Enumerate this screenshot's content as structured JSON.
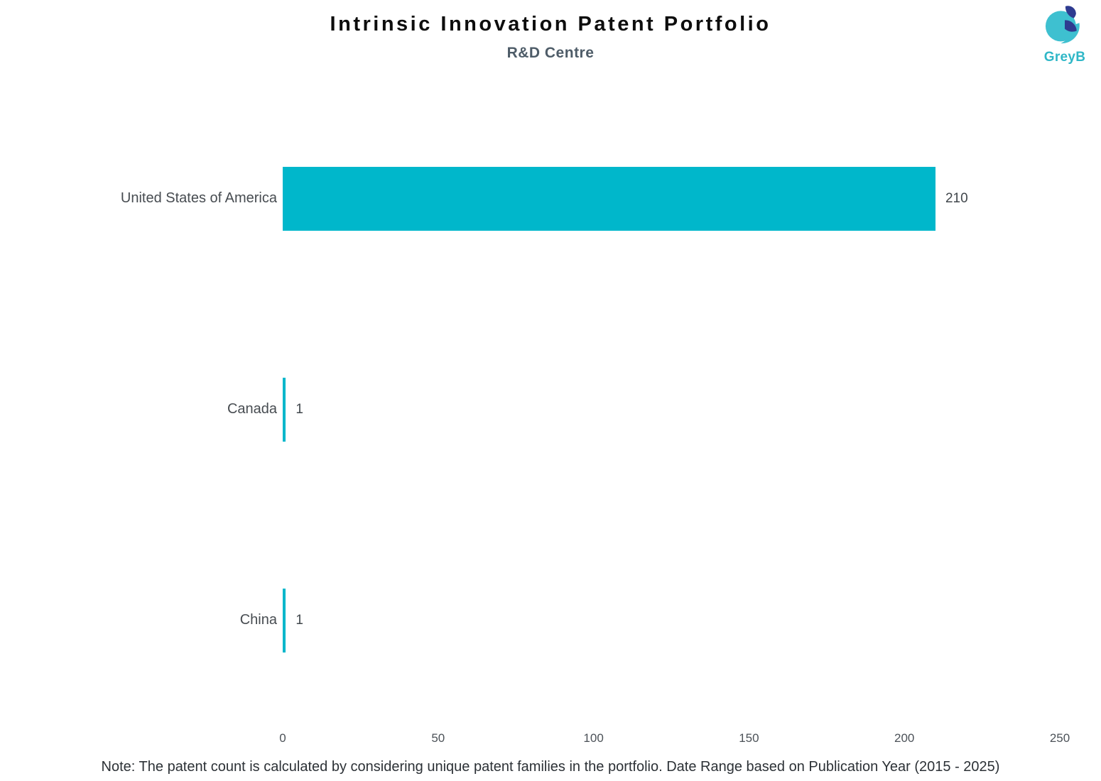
{
  "header": {
    "title": "Intrinsic Innovation Patent Portfolio",
    "subtitle": "R&D Centre",
    "logo_text": "GreyB"
  },
  "chart_data": {
    "type": "bar",
    "orientation": "horizontal",
    "title": "Intrinsic Innovation Patent Portfolio",
    "subtitle": "R&D Centre",
    "categories": [
      "United States of America",
      "Canada",
      "China"
    ],
    "values": [
      210,
      1,
      1
    ],
    "xlim": [
      0,
      250
    ],
    "x_ticks": [
      0,
      50,
      100,
      150,
      200,
      250
    ],
    "grid": false,
    "legend": "none",
    "bar_color": "#00b7cb"
  },
  "footer": {
    "note": "Note: The patent count is calculated by considering unique patent families in the portfolio. Date Range based on Publication Year (2015 - 2025)"
  },
  "icons": {
    "logo_mark": "greyb-logo-icon"
  },
  "colors": {
    "bar": "#00b7cb",
    "logo_teal": "#3ec0d0",
    "logo_navy": "#2e3b90",
    "logo_text": "#2fb7c7",
    "title_text": "#0d0d0d",
    "subtitle_text": "#4e5c68",
    "category_text": "#474c51",
    "tick_text": "#4c5258",
    "note_text": "#2c3136"
  }
}
